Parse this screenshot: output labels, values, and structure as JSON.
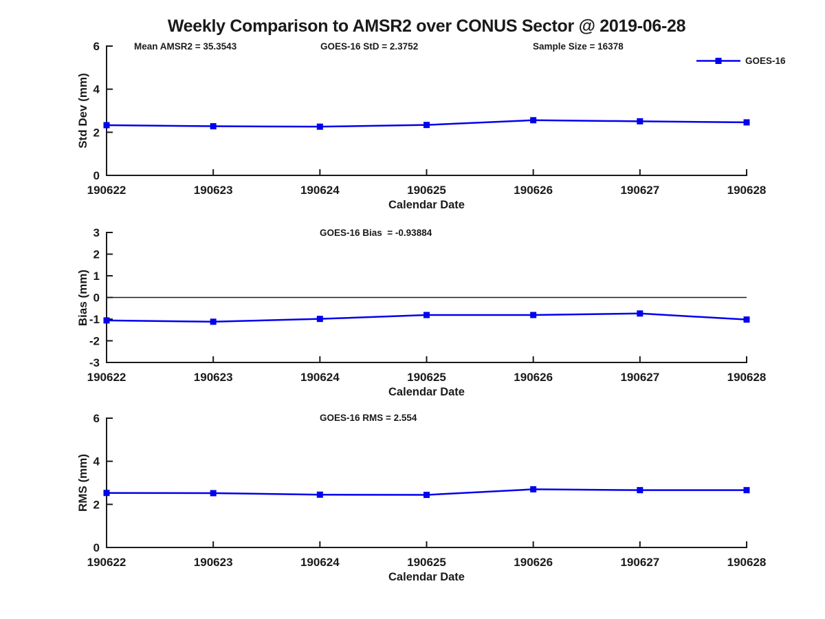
{
  "title": "Weekly Comparison to AMSR2 over CONUS Sector @ 2019-06-28",
  "legend": {
    "label": "GOES-16",
    "color": "#0000EE",
    "marker": "square"
  },
  "xlabel": "Calendar Date",
  "text_color": "#1a1a1a",
  "x_categories": [
    "190622",
    "190623",
    "190624",
    "190625",
    "190626",
    "190627",
    "190628"
  ],
  "chart_data": [
    {
      "type": "line",
      "name": "std-dev",
      "ylabel": "Std Dev (mm)",
      "ylim": [
        0,
        6
      ],
      "yticks": [
        0,
        2,
        4,
        6
      ],
      "grid": false,
      "legend_position": "top-right",
      "annotations": [
        {
          "text": "Mean AMSR2 = 35.3543"
        },
        {
          "text": "GOES-16 StD = 2.3752"
        },
        {
          "text": "Sample Size = 16378"
        }
      ],
      "zero_line": false,
      "series": [
        {
          "name": "GOES-16",
          "values": [
            2.33,
            2.28,
            2.26,
            2.34,
            2.56,
            2.51,
            2.46
          ]
        }
      ]
    },
    {
      "type": "line",
      "name": "bias",
      "ylabel": "Bias (mm)",
      "ylim": [
        -3,
        3
      ],
      "yticks": [
        -3,
        -2,
        -1,
        0,
        1,
        2,
        3
      ],
      "grid": false,
      "annotations": [
        {
          "text": "GOES-16 Bias  = -0.93884"
        }
      ],
      "zero_line": true,
      "series": [
        {
          "name": "GOES-16",
          "values": [
            -1.06,
            -1.12,
            -0.99,
            -0.81,
            -0.81,
            -0.74,
            -1.02
          ]
        }
      ]
    },
    {
      "type": "line",
      "name": "rms",
      "ylabel": "RMS (mm)",
      "ylim": [
        0,
        6
      ],
      "yticks": [
        0,
        2,
        4,
        6
      ],
      "grid": false,
      "annotations": [
        {
          "text": "GOES-16 RMS = 2.554"
        }
      ],
      "zero_line": false,
      "series": [
        {
          "name": "GOES-16",
          "values": [
            2.53,
            2.52,
            2.45,
            2.44,
            2.7,
            2.66,
            2.66
          ]
        }
      ]
    }
  ]
}
